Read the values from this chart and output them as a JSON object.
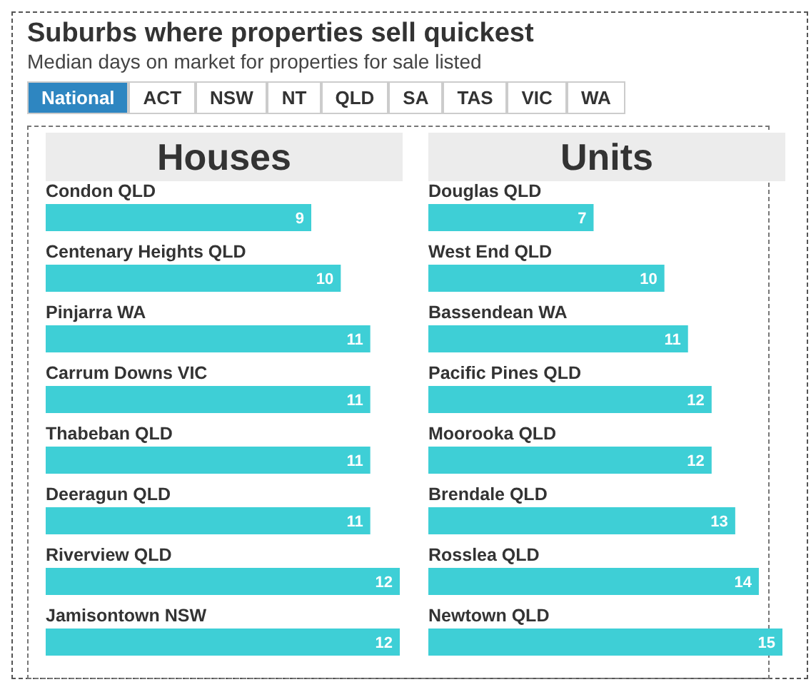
{
  "chart_data": [
    {
      "type": "other",
      "title": "Suburbs where properties sell quickest",
      "subtitle": "Median days on market for properties for sale listed",
      "annotations": [
        "National",
        "ACT",
        "NSW",
        "NT",
        "QLD",
        "SA",
        "TAS",
        "VIC",
        "WA"
      ]
    },
    {
      "type": "bar",
      "orientation": "horizontal",
      "title": "Houses",
      "data_labels": true,
      "color": "#3ecfd6",
      "categories": [
        "Condon QLD",
        "Centenary Heights QLD",
        "Pinjarra WA",
        "Carrum Downs VIC",
        "Thabeban QLD",
        "Deeragun QLD",
        "Riverview QLD",
        "Jamisontown NSW"
      ],
      "values": [
        9,
        10,
        11,
        11,
        11,
        11,
        12,
        12
      ]
    },
    {
      "type": "bar",
      "orientation": "horizontal",
      "title": "Units",
      "data_labels": true,
      "color": "#3ecfd6",
      "categories": [
        "Douglas QLD",
        "West End QLD",
        "Bassendean WA",
        "Pacific Pines QLD",
        "Moorooka QLD",
        "Brendale QLD",
        "Rosslea QLD",
        "Newtown QLD"
      ],
      "values": [
        7,
        10,
        11,
        12,
        12,
        13,
        14,
        15
      ]
    }
  ]
}
